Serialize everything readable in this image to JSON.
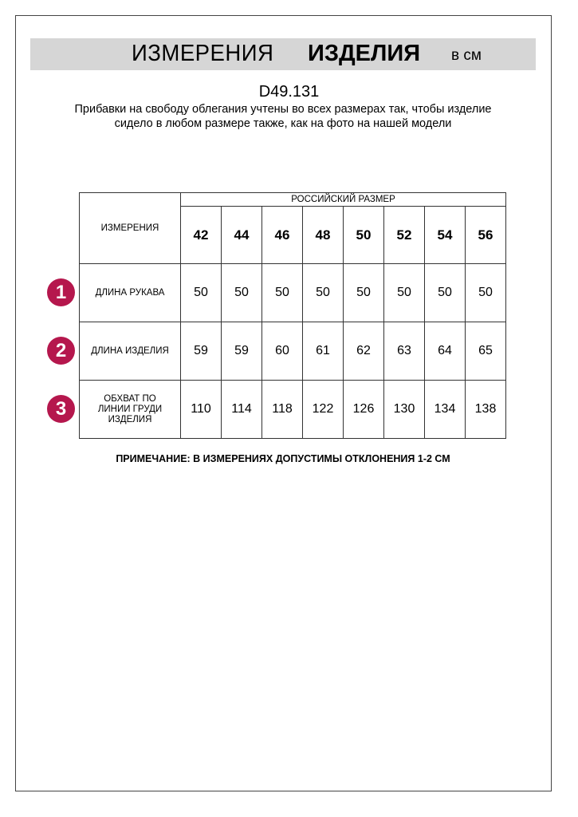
{
  "header": {
    "title_regular": "ИЗМЕРЕНИЯ",
    "title_bold": "ИЗДЕЛИЯ",
    "unit": "в см"
  },
  "article_code": "D49.131",
  "description": "Прибавки на свободу облегания учтены во всех размерах так, чтобы изделие сидело в любом размере также, как на фото на нашей модели",
  "table": {
    "corner_label": "ИЗМЕРЕНИЯ",
    "group_header": "РОССИЙСКИЙ РАЗМЕР",
    "sizes": [
      "42",
      "44",
      "46",
      "48",
      "50",
      "52",
      "54",
      "56"
    ],
    "rows": [
      {
        "badge": "1",
        "label": "ДЛИНА РУКАВА",
        "values": [
          "50",
          "50",
          "50",
          "50",
          "50",
          "50",
          "50",
          "50"
        ]
      },
      {
        "badge": "2",
        "label": "ДЛИНА ИЗДЕЛИЯ",
        "values": [
          "59",
          "59",
          "60",
          "61",
          "62",
          "63",
          "64",
          "65"
        ]
      },
      {
        "badge": "3",
        "label": "ОБХВАТ ПО ЛИНИИ ГРУДИ ИЗДЕЛИЯ",
        "values": [
          "110",
          "114",
          "118",
          "122",
          "126",
          "130",
          "134",
          "138"
        ]
      }
    ]
  },
  "note": "ПРИМЕЧАНИЕ: В ИЗМЕРЕНИЯХ ДОПУСТИМЫ ОТКЛОНЕНИЯ 1-2 СМ",
  "colors": {
    "badge": "#b5174d",
    "band": "#d6d6d6"
  }
}
